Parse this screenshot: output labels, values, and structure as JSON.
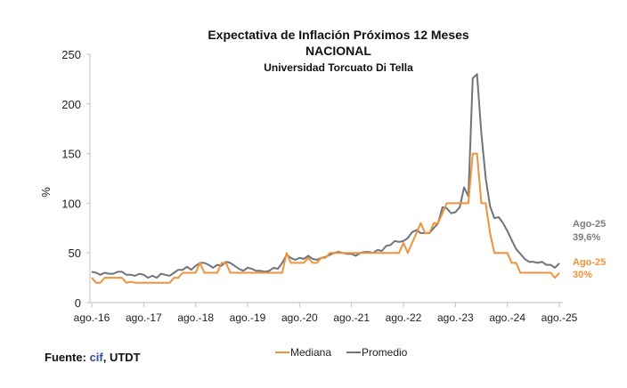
{
  "chart_data": {
    "type": "line",
    "title": "Expectativa de Inflación Próximos 12 Meses",
    "subtitle": "NACIONAL",
    "subtitle2": "Universidad Torcuato Di Tella",
    "ylabel": "%",
    "xlabel": "",
    "ylim": [
      0,
      250
    ],
    "yticks": [
      0,
      50,
      100,
      150,
      200,
      250
    ],
    "xtick_labels": [
      "ago.-16",
      "ago.-17",
      "ago.-18",
      "ago.-19",
      "ago.-20",
      "ago.-21",
      "ago.-22",
      "ago.-23",
      "ago.-24",
      "ago.-25"
    ],
    "grid": false,
    "legend_position": "bottom",
    "x": [
      "2016-08",
      "2016-09",
      "2016-10",
      "2016-11",
      "2016-12",
      "2017-01",
      "2017-02",
      "2017-03",
      "2017-04",
      "2017-05",
      "2017-06",
      "2017-07",
      "2017-08",
      "2017-09",
      "2017-10",
      "2017-11",
      "2017-12",
      "2018-01",
      "2018-02",
      "2018-03",
      "2018-04",
      "2018-05",
      "2018-06",
      "2018-07",
      "2018-08",
      "2018-09",
      "2018-10",
      "2018-11",
      "2018-12",
      "2019-01",
      "2019-02",
      "2019-03",
      "2019-04",
      "2019-05",
      "2019-06",
      "2019-07",
      "2019-08",
      "2019-09",
      "2019-10",
      "2019-11",
      "2019-12",
      "2020-01",
      "2020-02",
      "2020-03",
      "2020-04",
      "2020-05",
      "2020-06",
      "2020-07",
      "2020-08",
      "2020-09",
      "2020-10",
      "2020-11",
      "2020-12",
      "2021-01",
      "2021-02",
      "2021-03",
      "2021-04",
      "2021-05",
      "2021-06",
      "2021-07",
      "2021-08",
      "2021-09",
      "2021-10",
      "2021-11",
      "2021-12",
      "2022-01",
      "2022-02",
      "2022-03",
      "2022-04",
      "2022-05",
      "2022-06",
      "2022-07",
      "2022-08",
      "2022-09",
      "2022-10",
      "2022-11",
      "2022-12",
      "2023-01",
      "2023-02",
      "2023-03",
      "2023-04",
      "2023-05",
      "2023-06",
      "2023-07",
      "2023-08",
      "2023-09",
      "2023-10",
      "2023-11",
      "2023-12",
      "2024-01",
      "2024-02",
      "2024-03",
      "2024-04",
      "2024-05",
      "2024-06",
      "2024-07",
      "2024-08",
      "2024-09",
      "2024-10",
      "2024-11",
      "2024-12",
      "2025-01",
      "2025-02",
      "2025-03",
      "2025-04",
      "2025-05",
      "2025-06",
      "2025-07",
      "2025-08"
    ],
    "series": [
      {
        "name": "Mediana",
        "color": "#F0923A",
        "values": [
          25,
          20,
          20,
          25,
          25,
          25,
          25,
          25,
          20,
          21,
          20,
          20,
          20,
          20,
          20,
          20,
          20,
          20,
          20,
          25,
          25,
          30,
          30,
          30,
          30,
          40,
          30,
          30,
          30,
          30,
          40,
          40,
          30,
          30,
          30,
          30,
          30,
          30,
          30,
          30,
          30,
          30,
          30,
          30,
          30,
          50,
          40,
          40,
          40,
          40,
          45,
          40,
          40,
          45,
          45,
          50,
          50,
          50,
          50,
          50,
          50,
          50,
          50,
          50,
          50,
          50,
          50,
          50,
          50,
          50,
          50,
          50,
          60,
          50,
          60,
          70,
          80,
          70,
          70,
          80,
          80,
          90,
          100,
          100,
          100,
          100,
          100,
          100,
          150,
          150,
          100,
          100,
          70,
          50,
          50,
          50,
          50,
          40,
          40,
          30,
          30,
          30,
          30,
          30,
          30,
          30,
          30,
          25,
          30
        ]
      },
      {
        "name": "Promedio",
        "color": "#6F7479",
        "values": [
          31,
          30,
          28,
          30,
          29,
          29,
          31,
          31,
          28,
          28,
          27,
          29,
          28,
          25,
          27,
          25,
          29,
          28,
          27,
          30,
          33,
          33,
          36,
          33,
          37,
          40,
          40,
          38,
          35,
          38,
          37,
          41,
          40,
          37,
          34,
          32,
          35,
          34,
          32,
          32,
          31,
          32,
          35,
          34,
          40,
          48,
          45,
          43,
          45,
          44,
          47,
          44,
          43,
          45,
          46,
          48,
          50,
          51,
          50,
          49,
          49,
          47,
          50,
          51,
          51,
          50,
          53,
          52,
          57,
          58,
          62,
          61,
          62,
          65,
          71,
          73,
          70,
          70,
          70,
          75,
          80,
          96,
          95,
          90,
          91,
          96,
          116,
          107,
          226,
          230,
          170,
          125,
          97,
          85,
          86,
          80,
          72,
          63,
          54,
          49,
          44,
          41,
          41,
          40,
          41,
          38,
          38,
          35,
          39.6
        ]
      }
    ],
    "annotations": [
      {
        "series": "Promedio",
        "label": "Ago-25",
        "value_text": "39,6%"
      },
      {
        "series": "Mediana",
        "label": "Ago-25",
        "value_text": "30%"
      }
    ]
  },
  "source": {
    "prefix": "Fuente: ",
    "cif": "cif",
    "suffix": ", UTDT"
  }
}
